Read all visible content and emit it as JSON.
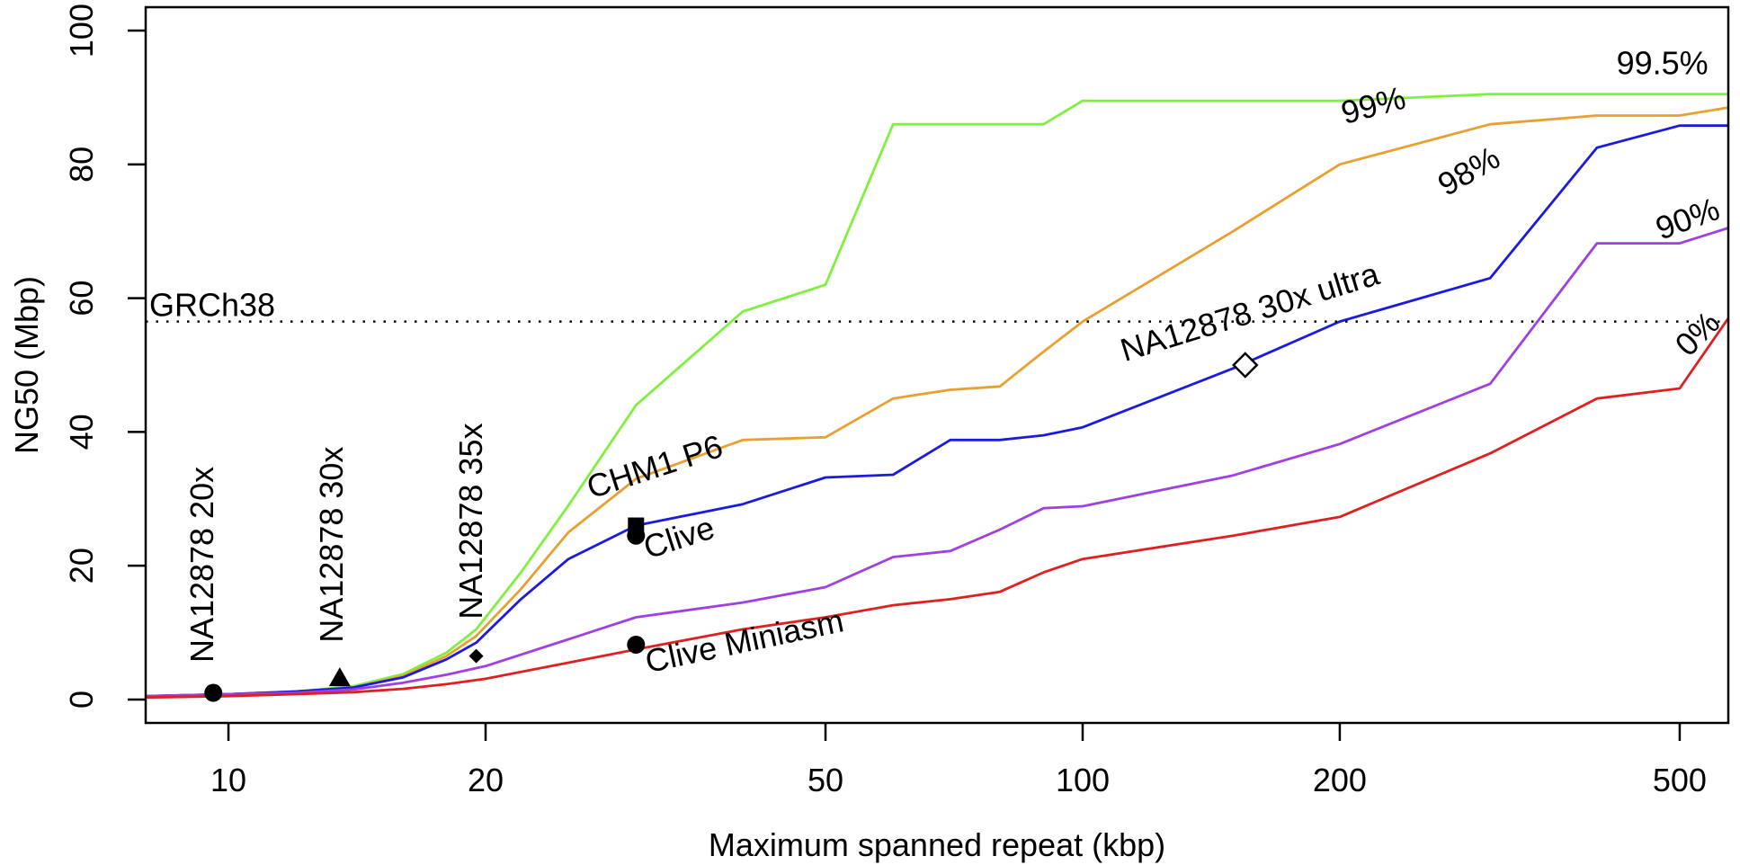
{
  "chart_data": {
    "type": "line",
    "xlabel": "Maximum spanned repeat (kbp)",
    "ylabel": "NG50 (Mbp)",
    "xscale": "log",
    "xlim": [
      8,
      570
    ],
    "ylim": [
      -3.5,
      103.5
    ],
    "xticks": [
      10,
      20,
      50,
      100,
      200,
      500
    ],
    "xtick_labels": [
      "10",
      "20",
      "50",
      "100",
      "200",
      "500"
    ],
    "yticks": [
      0,
      20,
      40,
      60,
      80,
      100
    ],
    "ytick_labels": [
      "0",
      "20",
      "40",
      "60",
      "80",
      "100"
    ],
    "grid": false,
    "reference_line": {
      "label": "GRCh38",
      "y": 56.5,
      "style": "dotted"
    },
    "series": [
      {
        "name": "99.5%",
        "color": "#80f040",
        "x": [
          8,
          10,
          12,
          14,
          16,
          18,
          19.5,
          22,
          25,
          30,
          40,
          50,
          60,
          70,
          90,
          100,
          150,
          200,
          300,
          400,
          500,
          570
        ],
        "y": [
          0.5,
          0.8,
          1.2,
          2.0,
          3.8,
          7.0,
          10.5,
          19,
          29,
          44,
          58,
          62,
          86,
          86,
          86,
          89.5,
          89.5,
          89.5,
          90.5,
          90.5,
          90.5,
          90.5
        ]
      },
      {
        "name": "99%",
        "color": "#e8a030",
        "x": [
          8,
          10,
          12,
          14,
          16,
          18,
          19.5,
          22,
          25,
          30,
          40,
          50,
          60,
          70,
          80,
          90,
          100,
          150,
          200,
          300,
          400,
          500,
          570
        ],
        "y": [
          0.5,
          0.8,
          1.2,
          1.8,
          3.5,
          6.5,
          9.5,
          16.5,
          25,
          33,
          38.8,
          39.2,
          45,
          46.3,
          46.8,
          52,
          56.5,
          70,
          80,
          86,
          87.3,
          87.3,
          88.5
        ]
      },
      {
        "name": "98%",
        "color": "#1a1ae0",
        "x": [
          8,
          10,
          12,
          14,
          16,
          18,
          19.5,
          22,
          25,
          30,
          40,
          50,
          60,
          70,
          80,
          90,
          100,
          150,
          200,
          300,
          400,
          500,
          570
        ],
        "y": [
          0.5,
          0.8,
          1.2,
          1.8,
          3.3,
          6,
          8.5,
          15,
          21,
          26,
          29.2,
          33.2,
          33.6,
          38.8,
          38.8,
          39.5,
          40.7,
          49.5,
          56.5,
          63,
          82.5,
          85.8,
          85.8
        ]
      },
      {
        "name": "90%",
        "color": "#a040e0",
        "x": [
          8,
          10,
          12,
          14,
          16,
          18,
          20,
          25,
          30,
          40,
          50,
          60,
          70,
          80,
          90,
          100,
          150,
          200,
          300,
          400,
          500,
          570
        ],
        "y": [
          0.5,
          0.8,
          1.0,
          1.5,
          2.5,
          3.7,
          5.0,
          9.0,
          12.3,
          14.5,
          16.8,
          21.3,
          22.2,
          25.4,
          28.6,
          28.9,
          33.5,
          38.2,
          47.2,
          68.2,
          68.2,
          70.5
        ]
      },
      {
        "name": "0%",
        "color": "#e02020",
        "x": [
          8,
          10,
          12,
          14,
          16,
          18,
          20,
          25,
          30,
          40,
          50,
          60,
          70,
          80,
          90,
          100,
          150,
          200,
          300,
          400,
          500,
          570
        ],
        "y": [
          0.3,
          0.5,
          0.8,
          1.1,
          1.6,
          2.3,
          3.1,
          5.5,
          7.5,
          10.5,
          12.3,
          14.1,
          15.0,
          16.1,
          19.0,
          21.0,
          24.5,
          27.3,
          36.8,
          45.0,
          46.5,
          57.0
        ]
      }
    ],
    "series_labels": [
      {
        "text": "99.5%",
        "x": 540,
        "y": 93.5,
        "rotate": 0
      },
      {
        "text": "99%",
        "x": 240,
        "y": 88.5,
        "rotate": -15
      },
      {
        "text": "98%",
        "x": 310,
        "y": 80,
        "rotate": -30
      },
      {
        "text": "90%",
        "x": 560,
        "y": 72,
        "rotate": -20
      },
      {
        "text": "0%",
        "x": 560,
        "y": 56,
        "rotate": -45
      }
    ],
    "points": [
      {
        "label": "NA12878 20x",
        "marker": "circle",
        "x": 9.6,
        "y": 1.0
      },
      {
        "label": "NA12878 30x",
        "marker": "triangle",
        "x": 13.5,
        "y": 3.2
      },
      {
        "label": "NA12878 35x",
        "marker": "diamond",
        "x": 19.5,
        "y": 6.5
      },
      {
        "label": "CHM1 P6",
        "marker": "square",
        "x": 30,
        "y": 26.0
      },
      {
        "label": "Clive",
        "marker": "circle",
        "x": 30,
        "y": 24.5
      },
      {
        "label": "Clive Miniasm",
        "marker": "circle",
        "x": 30,
        "y": 8.2
      },
      {
        "label": "NA12878 30x ultra",
        "marker": "open-diamond",
        "x": 155,
        "y": 50.0
      }
    ],
    "point_label_placements": [
      {
        "x": 9.6,
        "y": 5.5,
        "rotate": -90
      },
      {
        "x": 13.6,
        "y": 8.5,
        "rotate": -90
      },
      {
        "x": 19.8,
        "y": 12.0,
        "rotate": -90
      },
      {
        "x": 26.6,
        "y": 30.0,
        "rotate": -18
      },
      {
        "x": 31.0,
        "y": 21.0,
        "rotate": -18
      },
      {
        "x": 31.0,
        "y": 4.0,
        "rotate": -12
      },
      {
        "x": 112,
        "y": 50.5,
        "rotate": -17
      }
    ]
  }
}
